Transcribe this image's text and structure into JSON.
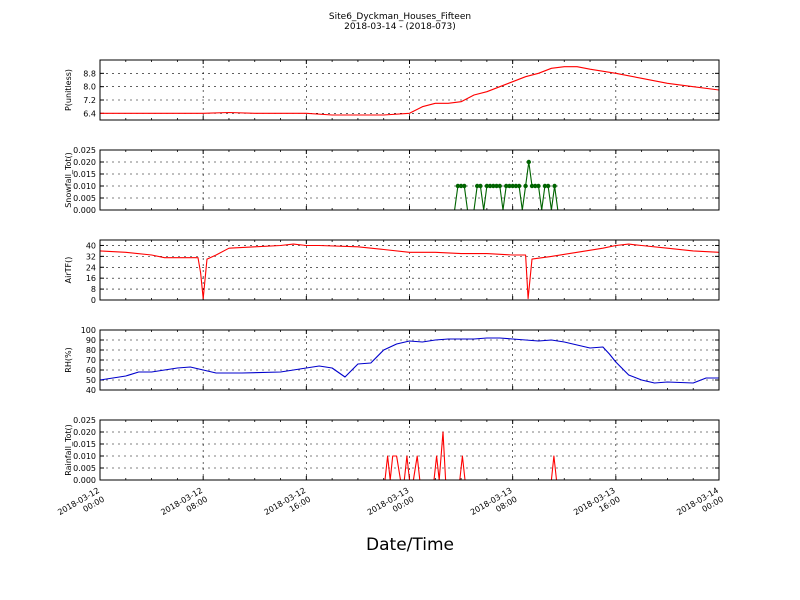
{
  "title": "Site6_Dyckman_Houses_Fifteen",
  "subtitle": "2018-03-14 - (2018-073)",
  "xlabel": "Date/Time",
  "x_ticks": [
    {
      "l1": "2018-03-12",
      "l2": "00:00",
      "h": 0
    },
    {
      "l1": "2018-03-12",
      "l2": "08:00",
      "h": 8
    },
    {
      "l1": "2018-03-12",
      "l2": "16:00",
      "h": 16
    },
    {
      "l1": "2018-03-13",
      "l2": "00:00",
      "h": 24
    },
    {
      "l1": "2018-03-13",
      "l2": "08:00",
      "h": 32
    },
    {
      "l1": "2018-03-13",
      "l2": "16:00",
      "h": 40
    },
    {
      "l1": "2018-03-14",
      "l2": "00:00",
      "h": 48
    }
  ],
  "chart_data": [
    {
      "type": "line",
      "ylabel": "P(unitless)",
      "ylim": [
        6.0,
        9.6
      ],
      "yticks": [
        "6.4",
        "7.2",
        "8.0",
        "8.8"
      ],
      "ytick_values": [
        6.4,
        7.2,
        8.0,
        8.8
      ],
      "color": "#ff0000",
      "grid": true,
      "x_hours": [
        0,
        4,
        8,
        10,
        12,
        16,
        18,
        20,
        22,
        24,
        25,
        26,
        27,
        28,
        29,
        30,
        31,
        32,
        33,
        34,
        35,
        36,
        37,
        38,
        40,
        42,
        44,
        46,
        48
      ],
      "values": [
        6.4,
        6.4,
        6.4,
        6.45,
        6.4,
        6.4,
        6.3,
        6.3,
        6.3,
        6.4,
        6.8,
        7.0,
        7.0,
        7.1,
        7.5,
        7.7,
        8.0,
        8.3,
        8.6,
        8.8,
        9.1,
        9.2,
        9.2,
        9.05,
        8.8,
        8.5,
        8.2,
        8.0,
        7.8
      ]
    },
    {
      "type": "line",
      "ylabel": "Snowfall_Tot()",
      "ylim": [
        0,
        0.025
      ],
      "yticks": [
        "0.000",
        "0.005",
        "0.010",
        "0.015",
        "0.020",
        "0.025"
      ],
      "ytick_values": [
        0,
        0.005,
        0.01,
        0.015,
        0.02,
        0.025
      ],
      "color": "#006400",
      "markers": true,
      "grid": true,
      "x_hours": [
        0,
        27.5,
        27.75,
        28.0,
        28.25,
        28.5,
        28.75,
        29.0,
        29.25,
        29.5,
        29.75,
        30.0,
        30.25,
        30.5,
        30.75,
        31.0,
        31.25,
        31.5,
        31.75,
        32.0,
        32.25,
        32.5,
        32.75,
        33.0,
        33.25,
        33.5,
        33.75,
        34.0,
        34.25,
        34.5,
        34.75,
        35.0,
        35.25,
        35.5,
        48
      ],
      "values": [
        0,
        0,
        0.01,
        0.01,
        0.01,
        0,
        0,
        0,
        0.01,
        0.01,
        0,
        0.01,
        0.01,
        0.01,
        0.01,
        0.01,
        0,
        0.01,
        0.01,
        0.01,
        0.01,
        0.01,
        0,
        0.01,
        0.02,
        0.01,
        0.01,
        0.01,
        0,
        0.01,
        0.01,
        0,
        0.01,
        0,
        0
      ]
    },
    {
      "type": "line",
      "ylabel": "AirTF()",
      "ylim": [
        0,
        44
      ],
      "yticks": [
        "0",
        "8",
        "16",
        "24",
        "32",
        "40"
      ],
      "ytick_values": [
        0,
        8,
        16,
        24,
        32,
        40
      ],
      "color": "#ff0000",
      "grid": true,
      "x_hours": [
        0,
        2,
        4,
        5,
        6,
        7.6,
        7.8,
        8.0,
        8.3,
        9,
        10,
        12,
        14,
        15,
        16,
        17,
        20,
        22,
        24,
        26,
        28,
        30,
        32,
        33.0,
        33.2,
        33.5,
        35,
        37,
        39,
        40,
        41,
        42,
        44,
        46,
        48
      ],
      "values": [
        36,
        35,
        33,
        31,
        31,
        31,
        20,
        1,
        30,
        33,
        38,
        39,
        40,
        41,
        40,
        40,
        39,
        37,
        35,
        35,
        34,
        34,
        33,
        33,
        1,
        30,
        32,
        35,
        38,
        40,
        41,
        40,
        38,
        36,
        35
      ]
    },
    {
      "type": "line",
      "ylabel": "RH(%)",
      "ylim": [
        40,
        100
      ],
      "yticks": [
        "40",
        "50",
        "60",
        "70",
        "80",
        "90",
        "100"
      ],
      "ytick_values": [
        40,
        50,
        60,
        70,
        80,
        90,
        100
      ],
      "color": "#0000cc",
      "grid": true,
      "x_hours": [
        0,
        2,
        3,
        4,
        6,
        7,
        8,
        9,
        11,
        14,
        16,
        17,
        18,
        19,
        20,
        21,
        22,
        23,
        24,
        25,
        26,
        27,
        28,
        29,
        30,
        31,
        32,
        33,
        34,
        35,
        36,
        37,
        38,
        39,
        39.5,
        40,
        41,
        42,
        43,
        44,
        46,
        47,
        48
      ],
      "values": [
        50,
        54,
        58,
        58,
        62,
        63,
        60,
        57,
        57,
        58,
        62,
        64,
        62,
        53,
        66,
        67,
        80,
        86,
        89,
        88,
        90,
        91,
        91,
        91,
        92,
        92,
        91,
        90,
        89,
        90,
        88,
        85,
        82,
        83,
        76,
        68,
        55,
        50,
        47,
        48,
        47,
        52,
        52
      ]
    },
    {
      "type": "line",
      "ylabel": "Rainfall_Tot()",
      "ylim": [
        0,
        0.025
      ],
      "yticks": [
        "0.000",
        "0.005",
        "0.010",
        "0.015",
        "0.020",
        "0.025"
      ],
      "ytick_values": [
        0,
        0.005,
        0.01,
        0.015,
        0.02,
        0.025
      ],
      "color": "#ff0000",
      "grid": true,
      "x_hours": [
        0,
        22.1,
        22.3,
        22.5,
        22.7,
        23.0,
        23.3,
        23.6,
        23.8,
        24.0,
        24.3,
        24.6,
        24.8,
        25.1,
        25.9,
        26.1,
        26.3,
        26.6,
        26.8,
        27.0,
        27.9,
        28.1,
        28.3,
        35.0,
        35.2,
        35.4,
        48
      ],
      "values": [
        0,
        0,
        0.01,
        0,
        0.01,
        0.01,
        0,
        0,
        0.01,
        0,
        0,
        0.01,
        0,
        0,
        0,
        0.01,
        0,
        0.02,
        0,
        0,
        0,
        0.01,
        0,
        0,
        0.01,
        0,
        0
      ]
    }
  ]
}
